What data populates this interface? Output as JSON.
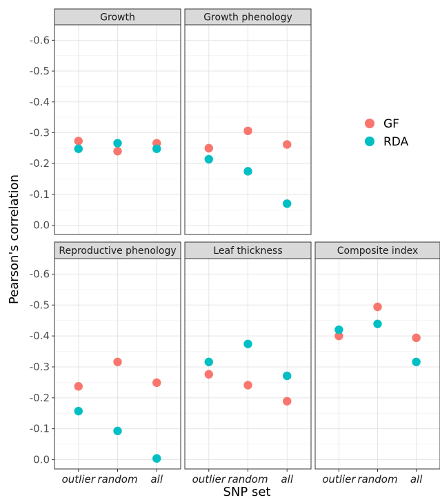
{
  "chart_data": {
    "type": "scatter",
    "xlabel": "SNP set",
    "ylabel": "Pearson's correlation",
    "categories": [
      "outlier",
      "random",
      "all"
    ],
    "y_ticks": [
      "-0.6",
      "-0.5",
      "-0.4",
      "-0.3",
      "-0.2",
      "-0.1",
      "0.0"
    ],
    "ylim": [
      0.03,
      -0.65
    ],
    "grid": true,
    "legend_position": "right",
    "series": [
      {
        "name": "GF",
        "color": "#F8766D"
      },
      {
        "name": "RDA",
        "color": "#00BFC4"
      }
    ],
    "panels": [
      {
        "title": "Growth",
        "GF": [
          -0.273,
          -0.24,
          -0.266
        ],
        "RDA": [
          -0.248,
          -0.266,
          -0.248
        ]
      },
      {
        "title": "Growth phenology",
        "GF": [
          -0.25,
          -0.306,
          -0.262
        ],
        "RDA": [
          -0.214,
          -0.175,
          -0.07
        ]
      },
      {
        "title": "Reproductive phenology",
        "GF": [
          -0.237,
          -0.316,
          -0.249
        ],
        "RDA": [
          -0.157,
          -0.093,
          -0.004
        ]
      },
      {
        "title": "Leaf thickness",
        "GF": [
          -0.276,
          -0.241,
          -0.189
        ],
        "RDA": [
          -0.316,
          -0.374,
          -0.271
        ]
      },
      {
        "title": "Composite index",
        "GF": [
          -0.4,
          -0.494,
          -0.394
        ],
        "RDA": [
          -0.42,
          -0.439,
          -0.316
        ]
      }
    ]
  }
}
